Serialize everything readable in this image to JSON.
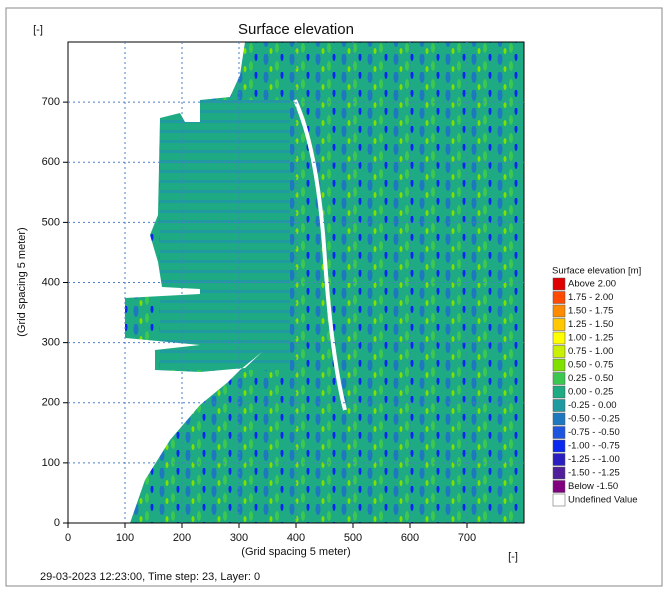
{
  "chart_data": {
    "type": "field",
    "title": "Surface elevation",
    "y_unit": "[-]",
    "x_unit": "[-]",
    "xlabel": "(Grid spacing 5 meter)",
    "ylabel": "(Grid spacing 5 meter)",
    "xlim": [
      0,
      800
    ],
    "ylim": [
      0,
      800
    ],
    "xticks": [
      0,
      100,
      200,
      300,
      400,
      500,
      600,
      700
    ],
    "yticks": [
      0,
      100,
      200,
      300,
      400,
      500,
      600,
      700
    ],
    "grid": true,
    "footer": "29-03-2023 12:23:00, Time step: 23, Layer: 0",
    "legend": {
      "title": "Surface elevation [m]",
      "entries": [
        {
          "label": "Above  2.00",
          "color": "#e00000"
        },
        {
          "label": "1.75 - 2.00",
          "color": "#ff4a00"
        },
        {
          "label": "1.50 - 1.75",
          "color": "#ff8c00"
        },
        {
          "label": "1.25 - 1.50",
          "color": "#ffc800"
        },
        {
          "label": "1.00 - 1.25",
          "color": "#ffff00"
        },
        {
          "label": "0.75 - 1.00",
          "color": "#c8f000"
        },
        {
          "label": "0.50 - 0.75",
          "color": "#80e000"
        },
        {
          "label": "0.25 - 0.50",
          "color": "#3cc850"
        },
        {
          "label": "0.00 - 0.25",
          "color": "#1eaa82"
        },
        {
          "label": "-0.25 - 0.00",
          "color": "#1e9aa0"
        },
        {
          "label": "-0.50 - -0.25",
          "color": "#1e78c0"
        },
        {
          "label": "-0.75 - -0.50",
          "color": "#1e55e0"
        },
        {
          "label": "-1.00 - -0.75",
          "color": "#0a28f0"
        },
        {
          "label": "-1.25 - -1.00",
          "color": "#2a1ec0"
        },
        {
          "label": "-1.50 - -1.25",
          "color": "#50209a"
        },
        {
          "label": "Below -1.50",
          "color": "#800080"
        },
        {
          "label": "Undefined Value",
          "color": "#ffffff"
        }
      ]
    }
  }
}
